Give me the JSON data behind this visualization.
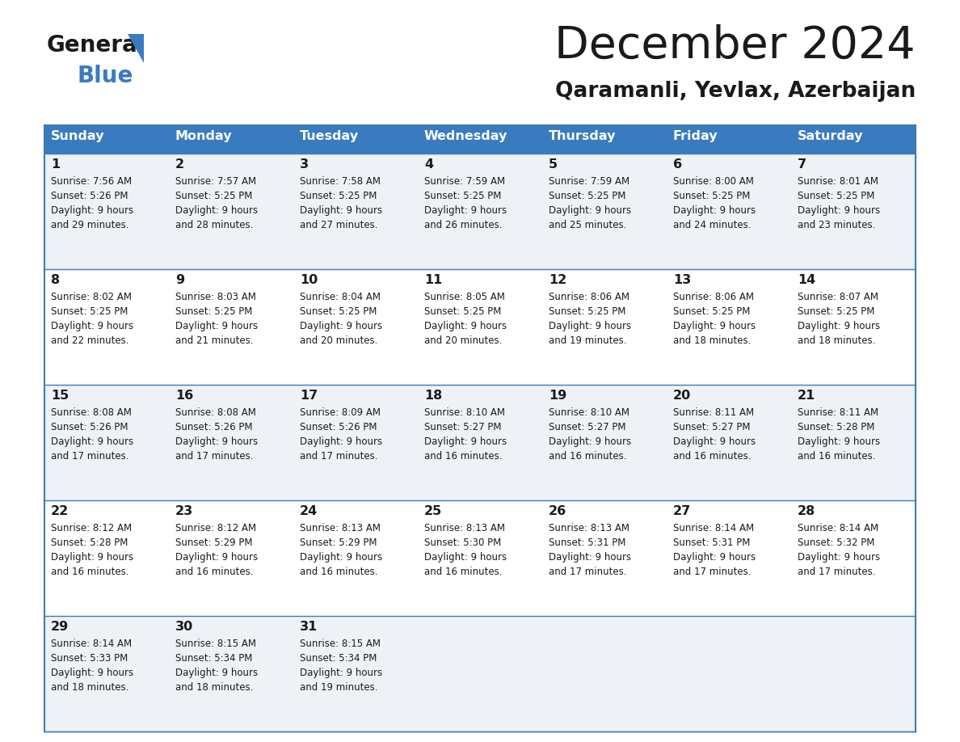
{
  "title": "December 2024",
  "subtitle": "Qaramanli, Yevlax, Azerbaijan",
  "header_bg": "#3a7bbf",
  "header_fg": "#ffffff",
  "row_bg_light": "#eef2f7",
  "row_bg_white": "#ffffff",
  "border_color": "#3a7bbf",
  "text_color": "#1a1a1a",
  "logo_black": "#1a1a1a",
  "logo_blue": "#3a7bbf",
  "days_of_week": [
    "Sunday",
    "Monday",
    "Tuesday",
    "Wednesday",
    "Thursday",
    "Friday",
    "Saturday"
  ],
  "weeks": [
    [
      {
        "day": "1",
        "sunrise": "7:56 AM",
        "sunset": "5:26 PM",
        "dl_min": "29"
      },
      {
        "day": "2",
        "sunrise": "7:57 AM",
        "sunset": "5:25 PM",
        "dl_min": "28"
      },
      {
        "day": "3",
        "sunrise": "7:58 AM",
        "sunset": "5:25 PM",
        "dl_min": "27"
      },
      {
        "day": "4",
        "sunrise": "7:59 AM",
        "sunset": "5:25 PM",
        "dl_min": "26"
      },
      {
        "day": "5",
        "sunrise": "7:59 AM",
        "sunset": "5:25 PM",
        "dl_min": "25"
      },
      {
        "day": "6",
        "sunrise": "8:00 AM",
        "sunset": "5:25 PM",
        "dl_min": "24"
      },
      {
        "day": "7",
        "sunrise": "8:01 AM",
        "sunset": "5:25 PM",
        "dl_min": "23"
      }
    ],
    [
      {
        "day": "8",
        "sunrise": "8:02 AM",
        "sunset": "5:25 PM",
        "dl_min": "22"
      },
      {
        "day": "9",
        "sunrise": "8:03 AM",
        "sunset": "5:25 PM",
        "dl_min": "21"
      },
      {
        "day": "10",
        "sunrise": "8:04 AM",
        "sunset": "5:25 PM",
        "dl_min": "20"
      },
      {
        "day": "11",
        "sunrise": "8:05 AM",
        "sunset": "5:25 PM",
        "dl_min": "20"
      },
      {
        "day": "12",
        "sunrise": "8:06 AM",
        "sunset": "5:25 PM",
        "dl_min": "19"
      },
      {
        "day": "13",
        "sunrise": "8:06 AM",
        "sunset": "5:25 PM",
        "dl_min": "18"
      },
      {
        "day": "14",
        "sunrise": "8:07 AM",
        "sunset": "5:25 PM",
        "dl_min": "18"
      }
    ],
    [
      {
        "day": "15",
        "sunrise": "8:08 AM",
        "sunset": "5:26 PM",
        "dl_min": "17"
      },
      {
        "day": "16",
        "sunrise": "8:08 AM",
        "sunset": "5:26 PM",
        "dl_min": "17"
      },
      {
        "day": "17",
        "sunrise": "8:09 AM",
        "sunset": "5:26 PM",
        "dl_min": "17"
      },
      {
        "day": "18",
        "sunrise": "8:10 AM",
        "sunset": "5:27 PM",
        "dl_min": "16"
      },
      {
        "day": "19",
        "sunrise": "8:10 AM",
        "sunset": "5:27 PM",
        "dl_min": "16"
      },
      {
        "day": "20",
        "sunrise": "8:11 AM",
        "sunset": "5:27 PM",
        "dl_min": "16"
      },
      {
        "day": "21",
        "sunrise": "8:11 AM",
        "sunset": "5:28 PM",
        "dl_min": "16"
      }
    ],
    [
      {
        "day": "22",
        "sunrise": "8:12 AM",
        "sunset": "5:28 PM",
        "dl_min": "16"
      },
      {
        "day": "23",
        "sunrise": "8:12 AM",
        "sunset": "5:29 PM",
        "dl_min": "16"
      },
      {
        "day": "24",
        "sunrise": "8:13 AM",
        "sunset": "5:29 PM",
        "dl_min": "16"
      },
      {
        "day": "25",
        "sunrise": "8:13 AM",
        "sunset": "5:30 PM",
        "dl_min": "16"
      },
      {
        "day": "26",
        "sunrise": "8:13 AM",
        "sunset": "5:31 PM",
        "dl_min": "17"
      },
      {
        "day": "27",
        "sunrise": "8:14 AM",
        "sunset": "5:31 PM",
        "dl_min": "17"
      },
      {
        "day": "28",
        "sunrise": "8:14 AM",
        "sunset": "5:32 PM",
        "dl_min": "17"
      }
    ],
    [
      {
        "day": "29",
        "sunrise": "8:14 AM",
        "sunset": "5:33 PM",
        "dl_min": "18"
      },
      {
        "day": "30",
        "sunrise": "8:15 AM",
        "sunset": "5:34 PM",
        "dl_min": "18"
      },
      {
        "day": "31",
        "sunrise": "8:15 AM",
        "sunset": "5:34 PM",
        "dl_min": "19"
      },
      null,
      null,
      null,
      null
    ]
  ]
}
